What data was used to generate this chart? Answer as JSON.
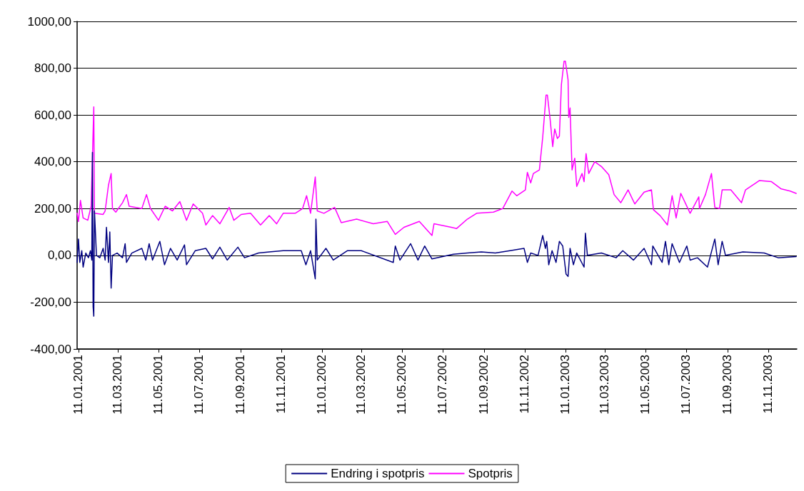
{
  "chart_data": {
    "type": "line",
    "xlim": [
      "2001-01-09",
      "2003-12-24"
    ],
    "xticks": [
      {
        "value": "2001-01-11",
        "label": "11.01.2001"
      },
      {
        "value": "2001-03-11",
        "label": "11.03.2001"
      },
      {
        "value": "2001-05-11",
        "label": "11.05.2001"
      },
      {
        "value": "2001-07-11",
        "label": "11.07.2001"
      },
      {
        "value": "2001-09-11",
        "label": "11.09.2001"
      },
      {
        "value": "2001-11-11",
        "label": "11.11.2001"
      },
      {
        "value": "2002-01-11",
        "label": "11.01.2002"
      },
      {
        "value": "2002-03-11",
        "label": "11.03.2002"
      },
      {
        "value": "2002-05-11",
        "label": "11.05.2002"
      },
      {
        "value": "2002-07-11",
        "label": "11.07.2002"
      },
      {
        "value": "2002-09-11",
        "label": "11.09.2002"
      },
      {
        "value": "2002-11-11",
        "label": "11.11.2002"
      },
      {
        "value": "2003-01-11",
        "label": "11.01.2003"
      },
      {
        "value": "2003-03-11",
        "label": "11.03.2003"
      },
      {
        "value": "2003-05-11",
        "label": "11.05.2003"
      },
      {
        "value": "2003-07-11",
        "label": "11.07.2003"
      },
      {
        "value": "2003-09-11",
        "label": "11.09.2003"
      },
      {
        "value": "2003-11-11",
        "label": "11.11.2003"
      }
    ],
    "ylim": [
      -400,
      1000
    ],
    "yticks": [
      {
        "value": -400,
        "label": "-400,00"
      },
      {
        "value": -200,
        "label": "-200,00"
      },
      {
        "value": 0,
        "label": "0,00"
      },
      {
        "value": 200,
        "label": "200,00"
      },
      {
        "value": 400,
        "label": "400,00"
      },
      {
        "value": 600,
        "label": "600,00"
      },
      {
        "value": 800,
        "label": "800,00"
      },
      {
        "value": 1000,
        "label": "1000,00"
      }
    ],
    "grid": "y",
    "legend": "bottom",
    "marker": "none",
    "line_style": "solid",
    "series": [
      {
        "name": "Endring i spotpris",
        "color": "#000080",
        "x": [
          "2001-01-09",
          "2001-01-11",
          "2001-01-13",
          "2001-01-16",
          "2001-01-18",
          "2001-01-22",
          "2001-01-26",
          "2001-01-29",
          "2001-01-31",
          "2001-02-01",
          "2001-02-02",
          "2001-02-03",
          "2001-02-04",
          "2001-02-07",
          "2001-02-12",
          "2001-02-17",
          "2001-02-20",
          "2001-02-22",
          "2001-02-25",
          "2001-02-27",
          "2001-03-01",
          "2001-03-03",
          "2001-03-10",
          "2001-03-18",
          "2001-03-22",
          "2001-03-24",
          "2001-04-01",
          "2001-04-16",
          "2001-04-22",
          "2001-04-27",
          "2001-05-02",
          "2001-05-13",
          "2001-05-20",
          "2001-05-29",
          "2001-06-08",
          "2001-06-19",
          "2001-06-22",
          "2001-07-05",
          "2001-07-21",
          "2001-07-31",
          "2001-08-11",
          "2001-08-22",
          "2001-09-07",
          "2001-09-17",
          "2001-10-08",
          "2001-10-24",
          "2001-11-14",
          "2001-12-11",
          "2001-12-18",
          "2001-12-25",
          "2002-01-01",
          "2002-01-02",
          "2002-01-04",
          "2002-01-17",
          "2002-01-28",
          "2002-02-18",
          "2002-03-11",
          "2002-04-28",
          "2002-05-01",
          "2002-05-08",
          "2002-05-24",
          "2002-06-04",
          "2002-06-14",
          "2002-06-25",
          "2002-07-27",
          "2002-08-17",
          "2002-09-07",
          "2002-09-28",
          "2002-10-20",
          "2002-11-10",
          "2002-11-15",
          "2002-11-20",
          "2002-12-01",
          "2002-12-08",
          "2002-12-12",
          "2002-12-14",
          "2002-12-17",
          "2002-12-22",
          "2002-12-28",
          "2003-01-02",
          "2003-01-07",
          "2003-01-12",
          "2003-01-15",
          "2003-01-18",
          "2003-01-23",
          "2003-01-28",
          "2003-02-08",
          "2003-02-10",
          "2003-02-13",
          "2003-03-06",
          "2003-03-28",
          "2003-04-07",
          "2003-04-23",
          "2003-05-09",
          "2003-05-20",
          "2003-05-22",
          "2003-06-05",
          "2003-06-10",
          "2003-06-15",
          "2003-06-20",
          "2003-07-01",
          "2003-07-12",
          "2003-07-17",
          "2003-07-28",
          "2003-08-12",
          "2003-08-23",
          "2003-08-28",
          "2003-09-03",
          "2003-09-08",
          "2003-10-04",
          "2003-11-05",
          "2003-11-26",
          "2003-12-23"
        ],
        "values": [
          -30,
          70,
          -30,
          20,
          -50,
          10,
          -10,
          20,
          -20,
          440,
          -220,
          -260,
          190,
          0,
          -10,
          30,
          -20,
          120,
          -30,
          100,
          -140,
          0,
          10,
          -10,
          50,
          -30,
          10,
          30,
          -20,
          50,
          -20,
          60,
          -40,
          30,
          -20,
          45,
          -40,
          20,
          30,
          -15,
          35,
          -20,
          35,
          -10,
          10,
          15,
          20,
          20,
          -40,
          20,
          -100,
          155,
          -20,
          30,
          -20,
          20,
          20,
          -30,
          40,
          -20,
          50,
          -20,
          40,
          -15,
          5,
          10,
          15,
          10,
          20,
          30,
          -30,
          10,
          0,
          85,
          30,
          60,
          -40,
          20,
          -30,
          60,
          40,
          -80,
          -90,
          30,
          -40,
          10,
          -50,
          95,
          0,
          10,
          -10,
          20,
          -20,
          30,
          -40,
          40,
          -30,
          60,
          -40,
          50,
          -30,
          40,
          -20,
          -10,
          -50,
          70,
          -40,
          60,
          0,
          15,
          10,
          -10,
          -5
        ]
      },
      {
        "name": "Spotpris",
        "color": "#ff00ff",
        "x": [
          "2001-01-09",
          "2001-01-11",
          "2001-01-14",
          "2001-01-18",
          "2001-01-25",
          "2001-01-30",
          "2001-02-03",
          "2001-02-04",
          "2001-02-17",
          "2001-02-20",
          "2001-02-25",
          "2001-03-01",
          "2001-03-03",
          "2001-03-08",
          "2001-03-18",
          "2001-03-24",
          "2001-03-28",
          "2001-04-16",
          "2001-04-23",
          "2001-04-29",
          "2001-05-11",
          "2001-05-21",
          "2001-06-01",
          "2001-06-12",
          "2001-06-22",
          "2001-07-02",
          "2001-07-16",
          "2001-07-21",
          "2001-07-31",
          "2001-08-11",
          "2001-08-25",
          "2001-09-01",
          "2001-09-12",
          "2001-09-26",
          "2001-10-11",
          "2001-10-24",
          "2001-11-04",
          "2001-11-14",
          "2001-12-02",
          "2001-12-13",
          "2001-12-19",
          "2001-12-25",
          "2002-01-01",
          "2002-01-04",
          "2002-01-14",
          "2002-01-30",
          "2002-02-09",
          "2002-03-04",
          "2002-03-29",
          "2002-04-19",
          "2002-05-01",
          "2002-05-14",
          "2002-06-06",
          "2002-06-25",
          "2002-06-28",
          "2002-07-24",
          "2002-08-01",
          "2002-08-17",
          "2002-08-31",
          "2002-09-25",
          "2002-10-09",
          "2002-10-23",
          "2002-10-30",
          "2002-11-12",
          "2002-11-15",
          "2002-11-20",
          "2002-11-24",
          "2002-12-03",
          "2002-12-08",
          "2002-12-13",
          "2002-12-15",
          "2002-12-19",
          "2002-12-23",
          "2002-12-26",
          "2002-12-30",
          "2003-01-02",
          "2003-01-05",
          "2003-01-09",
          "2003-01-11",
          "2003-01-15",
          "2003-01-16",
          "2003-01-18",
          "2003-01-21",
          "2003-01-25",
          "2003-01-28",
          "2003-02-05",
          "2003-02-08",
          "2003-02-11",
          "2003-02-15",
          "2003-02-24",
          "2003-03-06",
          "2003-03-17",
          "2003-03-25",
          "2003-04-04",
          "2003-04-15",
          "2003-04-25",
          "2003-05-09",
          "2003-05-20",
          "2003-05-23",
          "2003-06-02",
          "2003-06-13",
          "2003-06-20",
          "2003-06-26",
          "2003-07-03",
          "2003-07-17",
          "2003-07-30",
          "2003-07-31",
          "2003-08-09",
          "2003-08-18",
          "2003-08-23",
          "2003-08-30",
          "2003-09-03",
          "2003-09-16",
          "2003-10-02",
          "2003-10-08",
          "2003-10-29",
          "2003-11-16",
          "2003-11-30",
          "2003-12-14",
          "2003-12-23"
        ],
        "values": [
          180,
          145,
          235,
          160,
          150,
          210,
          635,
          180,
          175,
          190,
          300,
          350,
          200,
          185,
          225,
          260,
          210,
          200,
          260,
          200,
          150,
          210,
          190,
          230,
          150,
          220,
          180,
          130,
          170,
          135,
          205,
          150,
          175,
          180,
          130,
          170,
          135,
          180,
          180,
          200,
          255,
          180,
          335,
          190,
          180,
          205,
          140,
          155,
          135,
          145,
          90,
          120,
          145,
          85,
          135,
          120,
          115,
          155,
          180,
          185,
          200,
          275,
          255,
          280,
          355,
          310,
          350,
          365,
          505,
          685,
          685,
          585,
          465,
          540,
          500,
          510,
          730,
          830,
          830,
          750,
          590,
          630,
          365,
          415,
          295,
          350,
          315,
          435,
          350,
          400,
          380,
          345,
          260,
          225,
          280,
          220,
          270,
          280,
          195,
          170,
          130,
          255,
          160,
          265,
          180,
          250,
          200,
          260,
          350,
          205,
          200,
          280,
          280,
          225,
          280,
          320,
          315,
          285,
          275,
          265
        ]
      }
    ]
  }
}
